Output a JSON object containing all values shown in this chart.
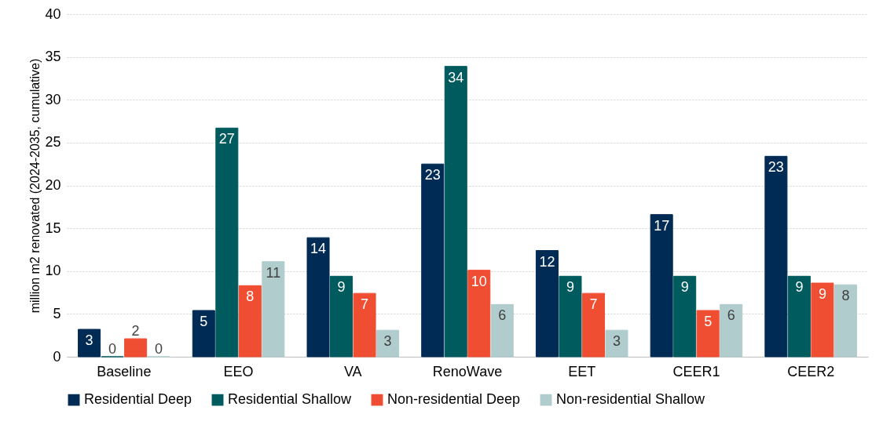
{
  "chart_data": {
    "type": "bar",
    "ylabel": "million m2 renovated (2024-2035, cumulative)",
    "categories": [
      "Baseline",
      "EEO",
      "VA",
      "RenoWave",
      "EET",
      "CEER1",
      "CEER2"
    ],
    "series": [
      {
        "name": "Residential Deep",
        "color": "#002b55",
        "values": [
          3.2,
          5.4,
          13.9,
          22.5,
          12.4,
          16.6,
          23.4
        ],
        "value_labels": [
          "3",
          "5",
          "14",
          "23",
          "12",
          "17",
          "23"
        ]
      },
      {
        "name": "Residential Shallow",
        "color": "#005b5e",
        "values": [
          0,
          26.7,
          9.4,
          33.9,
          9.4,
          9.4,
          9.4
        ],
        "value_labels": [
          "0",
          "27",
          "9",
          "34",
          "9",
          "9",
          "9"
        ]
      },
      {
        "name": "Non-residential Deep",
        "color": "#f04e32",
        "values": [
          2.1,
          8.3,
          7.4,
          10.1,
          7.4,
          5.4,
          8.6
        ],
        "value_labels": [
          "2",
          "8",
          "7",
          "10",
          "7",
          "5",
          "9"
        ]
      },
      {
        "name": "Non-residential Shallow",
        "color": "#b1cccc",
        "values": [
          0,
          11.1,
          3.1,
          6.1,
          3.1,
          6.1,
          8.4
        ],
        "value_labels": [
          "0",
          "11",
          "3",
          "6",
          "3",
          "6",
          "8"
        ]
      }
    ],
    "ylim": [
      0,
      40
    ],
    "yticks": [
      0,
      5,
      10,
      15,
      20,
      25,
      30,
      35,
      40
    ],
    "grid": "y",
    "legend": "bottom"
  }
}
